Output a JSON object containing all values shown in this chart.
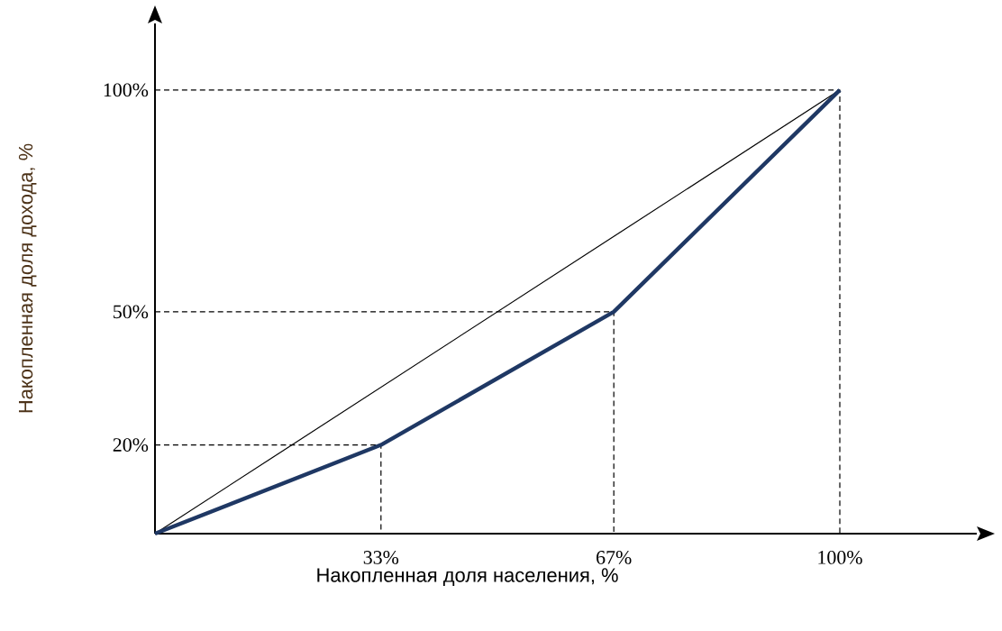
{
  "chart_data": {
    "type": "line",
    "xlabel": "Накопленная доля населения, %",
    "ylabel": "Накопленная доля дохода, %",
    "xlim": [
      0,
      120
    ],
    "ylim": [
      0,
      115
    ],
    "xticks": [
      {
        "value": 33,
        "label": "33%"
      },
      {
        "value": 67,
        "label": "67%"
      },
      {
        "value": 100,
        "label": "100%"
      }
    ],
    "yticks": [
      {
        "value": 20,
        "label": "20%"
      },
      {
        "value": 50,
        "label": "50%"
      },
      {
        "value": 100,
        "label": "100%"
      }
    ],
    "grid": false,
    "marker": "none",
    "line_style": "solid",
    "series": [
      {
        "color": "#000000",
        "line_style": "dashed",
        "x": [
          0,
          33,
          33
        ],
        "values": [
          20,
          20,
          0
        ]
      },
      {
        "color": "#000000",
        "line_style": "dashed",
        "x": [
          0,
          67,
          67
        ],
        "values": [
          50,
          50,
          0
        ]
      },
      {
        "color": "#000000",
        "line_style": "dashed",
        "x": [
          0,
          100,
          100
        ],
        "values": [
          100,
          100,
          0
        ]
      },
      {
        "color": "#000000",
        "x": [
          0,
          100
        ],
        "values": [
          0,
          100
        ]
      },
      {
        "color": "#1f3864",
        "x": [
          0,
          33,
          67,
          100
        ],
        "values": [
          0,
          20,
          50,
          100
        ]
      }
    ]
  }
}
